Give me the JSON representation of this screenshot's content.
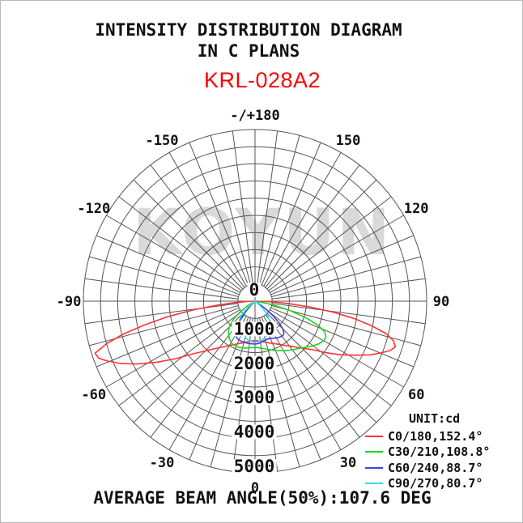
{
  "page": {
    "title_line1": "INTENSITY DISTRIBUTION DIAGRAM",
    "title_line2": "IN C PLANS",
    "model": "KRL-028A2",
    "model_color": "#fe0000",
    "watermark": "KOYUN",
    "footer": "AVERAGE BEAM ANGLE(50%):107.6 DEG"
  },
  "chart_data": {
    "type": "polar-intensity",
    "title": "INTENSITY DISTRIBUTION DIAGRAM IN C PLANS",
    "unit_label": "UNIT:cd",
    "unit": "cd",
    "zero_direction": "down",
    "angle_step_deg": 7.5,
    "angle_label_step_deg": 30,
    "angle_labels": [
      {
        "deg": 180,
        "text": "-/+180"
      },
      {
        "deg": 150,
        "text": "150"
      },
      {
        "deg": 120,
        "text": "120"
      },
      {
        "deg": 90,
        "text": "90"
      },
      {
        "deg": 60,
        "text": "60"
      },
      {
        "deg": 30,
        "text": "30"
      },
      {
        "deg": 0,
        "text": "0"
      },
      {
        "deg": -30,
        "text": "-30"
      },
      {
        "deg": -60,
        "text": "-60"
      },
      {
        "deg": -90,
        "text": "-90"
      },
      {
        "deg": -120,
        "text": "-120"
      },
      {
        "deg": -150,
        "text": "-150"
      }
    ],
    "rings_cd": [
      500,
      1000,
      1500,
      2000,
      2500,
      3000,
      3500,
      4000,
      4500,
      5000
    ],
    "radial_axis_labels_cd": [
      0,
      1000,
      2000,
      3000,
      4000,
      5000
    ],
    "r_max_cd": 5000,
    "grid_color": "#555555",
    "average_beam_angle_50_deg": 107.6,
    "series": [
      {
        "name": "C0/180",
        "beam_angle_deg": 152.4,
        "legend": "C0/180,152.4°",
        "color": "#ff3333",
        "points_deg_cd": [
          [
            -90,
            0
          ],
          [
            -88,
            200
          ],
          [
            -86,
            600
          ],
          [
            -84,
            1100
          ],
          [
            -82,
            1800
          ],
          [
            -80,
            2550
          ],
          [
            -78,
            3250
          ],
          [
            -76,
            3950
          ],
          [
            -74,
            4500
          ],
          [
            -72,
            4900
          ],
          [
            -70,
            4850
          ],
          [
            -68,
            4650
          ],
          [
            -65,
            4300
          ],
          [
            -62,
            3900
          ],
          [
            -58,
            3350
          ],
          [
            -54,
            2850
          ],
          [
            -50,
            2400
          ],
          [
            -45,
            2050
          ],
          [
            -40,
            1800
          ],
          [
            -35,
            1630
          ],
          [
            -30,
            1490
          ],
          [
            -25,
            1390
          ],
          [
            -20,
            1310
          ],
          [
            -15,
            1250
          ],
          [
            -10,
            1200
          ],
          [
            -5,
            1165
          ],
          [
            0,
            1150
          ],
          [
            5,
            1165
          ],
          [
            10,
            1195
          ],
          [
            15,
            1240
          ],
          [
            20,
            1300
          ],
          [
            25,
            1370
          ],
          [
            30,
            1460
          ],
          [
            35,
            1580
          ],
          [
            40,
            1730
          ],
          [
            45,
            1930
          ],
          [
            50,
            2200
          ],
          [
            54,
            2550
          ],
          [
            58,
            2950
          ],
          [
            62,
            3350
          ],
          [
            65,
            3700
          ],
          [
            68,
            4000
          ],
          [
            70,
            4200
          ],
          [
            72,
            4300
          ],
          [
            74,
            4200
          ],
          [
            76,
            3950
          ],
          [
            78,
            3500
          ],
          [
            80,
            2950
          ],
          [
            82,
            2300
          ],
          [
            84,
            1600
          ],
          [
            86,
            950
          ],
          [
            88,
            400
          ],
          [
            90,
            0
          ]
        ]
      },
      {
        "name": "C30/210",
        "beam_angle_deg": 108.8,
        "legend": "C30/210,108.8°",
        "color": "#1ed41e",
        "points_deg_cd": [
          [
            -62,
            0
          ],
          [
            -58,
            250
          ],
          [
            -54,
            550
          ],
          [
            -50,
            820
          ],
          [
            -46,
            1020
          ],
          [
            -42,
            1150
          ],
          [
            -38,
            1250
          ],
          [
            -34,
            1330
          ],
          [
            -30,
            1390
          ],
          [
            -26,
            1425
          ],
          [
            -22,
            1430
          ],
          [
            -18,
            1420
          ],
          [
            -14,
            1405
          ],
          [
            -10,
            1385
          ],
          [
            -6,
            1365
          ],
          [
            0,
            1345
          ],
          [
            5,
            1365
          ],
          [
            10,
            1400
          ],
          [
            15,
            1455
          ],
          [
            20,
            1520
          ],
          [
            25,
            1590
          ],
          [
            30,
            1665
          ],
          [
            35,
            1745
          ],
          [
            40,
            1830
          ],
          [
            44,
            1900
          ],
          [
            48,
            2000
          ],
          [
            52,
            2120
          ],
          [
            56,
            2230
          ],
          [
            60,
            2305
          ],
          [
            63,
            2320
          ],
          [
            66,
            2230
          ],
          [
            69,
            1980
          ],
          [
            72,
            1550
          ],
          [
            75,
            1050
          ],
          [
            78,
            550
          ],
          [
            80,
            250
          ],
          [
            82,
            0
          ]
        ]
      },
      {
        "name": "C60/240",
        "beam_angle_deg": 88.7,
        "legend": "C60/240,88.7°",
        "color": "#4040d9",
        "points_deg_cd": [
          [
            -46,
            0
          ],
          [
            -44,
            180
          ],
          [
            -42,
            380
          ],
          [
            -40,
            560
          ],
          [
            -38,
            720
          ],
          [
            -35,
            900
          ],
          [
            -32,
            1050
          ],
          [
            -29,
            1150
          ],
          [
            -26,
            1200
          ],
          [
            -22,
            1225
          ],
          [
            -18,
            1235
          ],
          [
            -14,
            1240
          ],
          [
            -10,
            1245
          ],
          [
            -6,
            1248
          ],
          [
            0,
            1250
          ],
          [
            4,
            1240
          ],
          [
            8,
            1215
          ],
          [
            12,
            1185
          ],
          [
            16,
            1165
          ],
          [
            20,
            1165
          ],
          [
            24,
            1185
          ],
          [
            28,
            1220
          ],
          [
            32,
            1255
          ],
          [
            36,
            1280
          ],
          [
            39,
            1290
          ],
          [
            42,
            1260
          ],
          [
            45,
            1150
          ],
          [
            48,
            950
          ],
          [
            51,
            680
          ],
          [
            54,
            380
          ],
          [
            56,
            180
          ],
          [
            58,
            0
          ]
        ]
      },
      {
        "name": "C90/270",
        "beam_angle_deg": 80.7,
        "legend": "C90/270,80.7°",
        "color": "#35dded",
        "points_deg_cd": [
          [
            -52,
            0
          ],
          [
            -50,
            120
          ],
          [
            -48,
            280
          ],
          [
            -46,
            440
          ],
          [
            -44,
            560
          ],
          [
            -42,
            640
          ],
          [
            -40,
            700
          ],
          [
            -37,
            770
          ],
          [
            -34,
            830
          ],
          [
            -31,
            875
          ],
          [
            -28,
            910
          ],
          [
            -25,
            945
          ],
          [
            -22,
            985
          ],
          [
            -19,
            1030
          ],
          [
            -16,
            1075
          ],
          [
            -13,
            1115
          ],
          [
            -10,
            1150
          ],
          [
            -7,
            1175
          ],
          [
            -4,
            1190
          ],
          [
            0,
            1195
          ],
          [
            4,
            1185
          ],
          [
            8,
            1165
          ],
          [
            12,
            1135
          ],
          [
            16,
            1090
          ],
          [
            20,
            1040
          ],
          [
            24,
            975
          ],
          [
            28,
            900
          ],
          [
            32,
            820
          ],
          [
            36,
            720
          ],
          [
            40,
            600
          ],
          [
            43,
            480
          ],
          [
            46,
            340
          ],
          [
            49,
            180
          ],
          [
            51,
            80
          ],
          [
            53,
            0
          ]
        ]
      }
    ]
  }
}
